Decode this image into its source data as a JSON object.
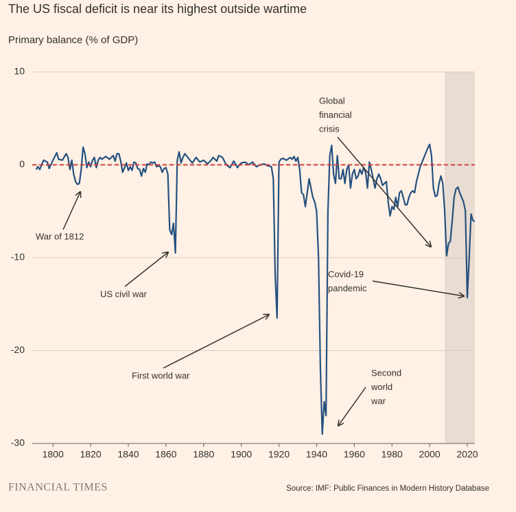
{
  "chart_data": {
    "type": "line",
    "title": "The US fiscal deficit is near its highest outside wartime",
    "subtitle": "Primary balance (% of GDP)",
    "source": "Source: IMF: Public Finances in Modern History Database",
    "brand": "FINANCIAL TIMES",
    "xlim": [
      1789,
      2024
    ],
    "xticks": [
      1800,
      1820,
      1840,
      1860,
      1880,
      1900,
      1920,
      1940,
      1960,
      1980,
      2000,
      2020
    ],
    "ylim": [
      -30,
      10
    ],
    "yticks": [
      -30,
      -20,
      -10,
      0,
      10
    ],
    "grid": true,
    "reference_line": 0,
    "reference_color": "#d63c3c",
    "shaded_region": [
      2008,
      2024
    ],
    "shade_color": "#e9dcd2",
    "annotations": [
      {
        "lines": [
          "War of 1812"
        ]
      },
      {
        "lines": [
          "US civil war"
        ]
      },
      {
        "lines": [
          "First world war"
        ]
      },
      {
        "lines": [
          "Second",
          "world",
          "war"
        ]
      },
      {
        "lines": [
          "Global",
          "financial",
          "crisis"
        ]
      },
      {
        "lines": [
          "Covid-19",
          "pandemic"
        ]
      }
    ],
    "series": [
      {
        "color": "#24507f",
        "x": [
          1791,
          1792,
          1793,
          1795,
          1797,
          1798,
          1800,
          1802,
          1803,
          1805,
          1807,
          1808,
          1809,
          1810,
          1811,
          1812,
          1813,
          1814,
          1815,
          1816,
          1817,
          1818,
          1819,
          1820,
          1821,
          1822,
          1823,
          1824,
          1825,
          1826,
          1828,
          1830,
          1832,
          1833,
          1834,
          1835,
          1836,
          1837,
          1838,
          1839,
          1840,
          1841,
          1842,
          1843,
          1844,
          1845,
          1846,
          1847,
          1848,
          1849,
          1850,
          1851,
          1852,
          1853,
          1854,
          1855,
          1856,
          1857,
          1858,
          1859,
          1860,
          1861,
          1862,
          1863,
          1864,
          1865,
          1866,
          1867,
          1868,
          1869,
          1870,
          1872,
          1874,
          1875,
          1876,
          1878,
          1880,
          1882,
          1884,
          1885,
          1887,
          1888,
          1890,
          1892,
          1894,
          1896,
          1898,
          1899,
          1900,
          1902,
          1904,
          1906,
          1908,
          1910,
          1912,
          1914,
          1916,
          1917,
          1918,
          1919,
          1920,
          1921,
          1922,
          1924,
          1926,
          1927,
          1928,
          1929,
          1930,
          1931,
          1932,
          1933,
          1934,
          1935,
          1936,
          1937,
          1938,
          1939,
          1940,
          1941,
          1942,
          1943,
          1944,
          1945,
          1946,
          1947,
          1948,
          1949,
          1950,
          1951,
          1952,
          1953,
          1954,
          1955,
          1956,
          1957,
          1958,
          1959,
          1960,
          1961,
          1962,
          1963,
          1964,
          1965,
          1966,
          1967,
          1968,
          1969,
          1970,
          1971,
          1972,
          1973,
          1974,
          1975,
          1976,
          1977,
          1978,
          1979,
          1980,
          1981,
          1982,
          1983,
          1984,
          1985,
          1986,
          1987,
          1988,
          1989,
          1990,
          1991,
          1992,
          1993,
          1994,
          1995,
          1996,
          1997,
          1998,
          1999,
          2000,
          2001,
          2002,
          2003,
          2004,
          2005,
          2006,
          2007,
          2008,
          2009,
          2010,
          2011,
          2012,
          2013,
          2014,
          2015,
          2016,
          2017,
          2018,
          2019,
          2020,
          2021,
          2022,
          2023,
          2024
        ],
        "values": [
          -0.5,
          -0.2,
          -0.5,
          0.5,
          0.3,
          -0.4,
          0.5,
          1.3,
          0.6,
          0.5,
          1.2,
          0.8,
          -0.5,
          0.5,
          -1.0,
          -1.8,
          -2.1,
          -2.0,
          -0.5,
          1.9,
          1.2,
          -0.3,
          0.3,
          -0.2,
          0.5,
          0.8,
          -0.3,
          0.5,
          0.8,
          0.6,
          0.9,
          0.6,
          1.0,
          0.4,
          1.2,
          1.2,
          0.4,
          -0.8,
          -0.3,
          0.2,
          -0.6,
          -0.2,
          -0.6,
          0.3,
          0.2,
          -0.4,
          -0.5,
          -1.2,
          -0.4,
          -0.8,
          0.1,
          0.0,
          0.3,
          0.2,
          0.3,
          -0.2,
          -0.1,
          -0.2,
          -0.8,
          -0.4,
          -0.3,
          -1.0,
          -7.0,
          -7.5,
          -6.3,
          -9.5,
          0.5,
          1.4,
          0.2,
          0.8,
          1.2,
          0.7,
          0.2,
          0.5,
          0.8,
          0.3,
          0.5,
          0.1,
          0.5,
          0.8,
          0.4,
          1.0,
          0.8,
          0.0,
          -0.3,
          0.4,
          -0.3,
          0.0,
          0.2,
          0.3,
          0.0,
          0.3,
          -0.2,
          0.0,
          0.1,
          -0.1,
          -0.2,
          -1.5,
          -12.0,
          -16.5,
          0.3,
          0.6,
          0.7,
          0.5,
          0.8,
          0.6,
          0.9,
          0.4,
          0.8,
          -0.5,
          -3.0,
          -3.2,
          -4.5,
          -3.0,
          -1.5,
          -2.5,
          -3.5,
          -4.0,
          -5.0,
          -10.0,
          -22.0,
          -29.0,
          -25.5,
          -27.0,
          -5.0,
          1.0,
          2.1,
          -1.0,
          -2.0,
          1.0,
          -1.5,
          -1.5,
          -0.5,
          -2.0,
          -0.5,
          0.0,
          -2.5,
          -1.0,
          -0.5,
          -1.5,
          -1.2,
          -0.5,
          -1.0,
          -0.3,
          -0.8,
          -2.5,
          0.3,
          -0.5,
          -1.5,
          -2.5,
          -1.5,
          -1.0,
          -1.5,
          -2.2,
          -2.0,
          -1.8,
          -4.0,
          -5.5,
          -4.5,
          -4.8,
          -3.5,
          -4.5,
          -3.0,
          -2.8,
          -3.5,
          -4.3,
          -4.3,
          -3.5,
          -3.0,
          -2.8,
          -3.0,
          -1.8,
          -1.0,
          -0.2,
          0.3,
          0.8,
          1.3,
          1.8,
          2.2,
          1.0,
          -2.5,
          -3.4,
          -3.3,
          -2.0,
          -1.2,
          -2.0,
          -5.0,
          -9.8,
          -8.5,
          -8.2,
          -6.0,
          -3.5,
          -2.6,
          -2.4,
          -3.0,
          -3.5,
          -4.0,
          -5.0,
          -14.3,
          -10.0,
          -5.3,
          -6.0,
          -6.1
        ]
      }
    ]
  }
}
